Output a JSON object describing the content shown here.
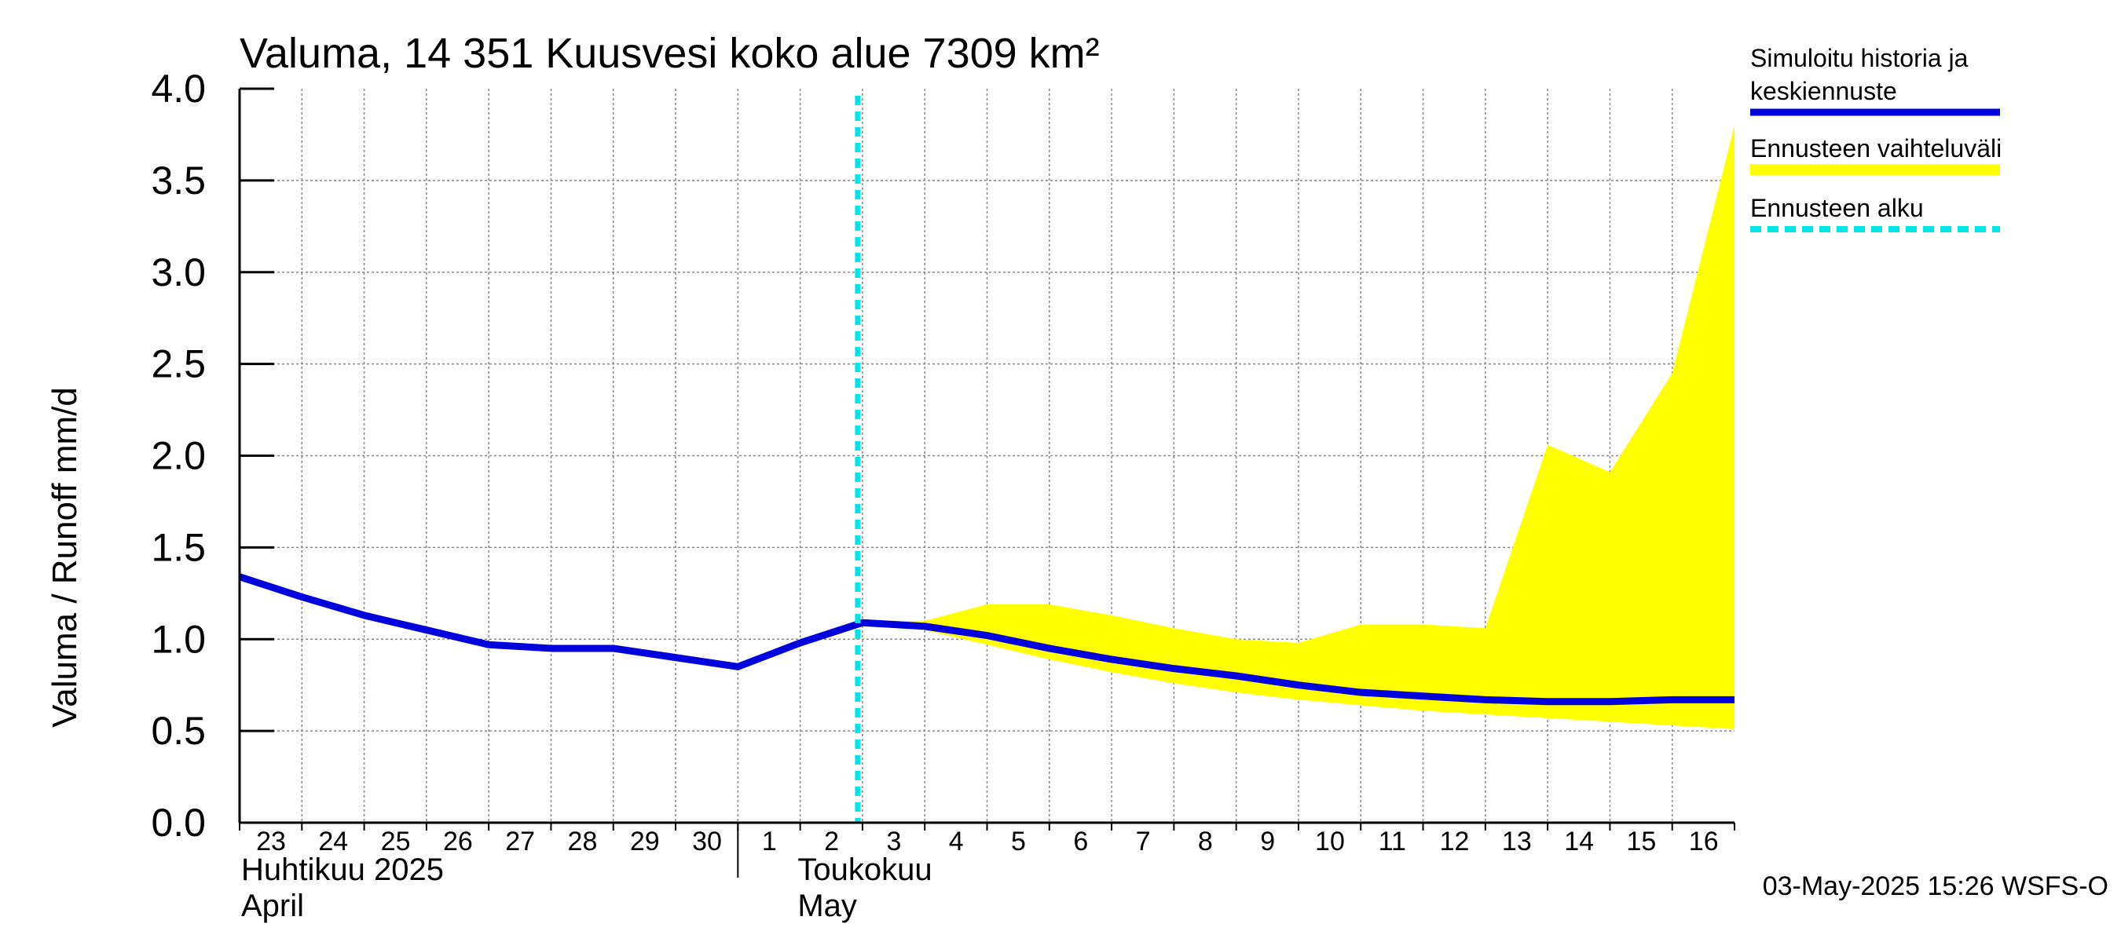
{
  "colors": {
    "line": "#0000dd",
    "band": "#ffff00",
    "forecast_start": "#00e5e5",
    "grid": "#888888",
    "axis": "#000000"
  },
  "chart_data": {
    "type": "line",
    "title": "Valuma, 14 351 Kuusvesi koko alue 7309 km²",
    "ylabel": "Valuma / Runoff    mm/d",
    "ylim": [
      0,
      4
    ],
    "yticks": [
      "0.0",
      "0.5",
      "1.0",
      "1.5",
      "2.0",
      "2.5",
      "3.0",
      "3.5",
      "4.0"
    ],
    "x_day_range": [
      0,
      24
    ],
    "x_tick_labels": [
      "23",
      "24",
      "25",
      "26",
      "27",
      "28",
      "29",
      "30",
      "1",
      "2",
      "3",
      "4",
      "5",
      "6",
      "7",
      "8",
      "9",
      "10",
      "11",
      "12",
      "13",
      "14",
      "15",
      "16"
    ],
    "month_labels": [
      {
        "fi": "Huhtikuu  2025",
        "en": "April",
        "day_index": 0
      },
      {
        "fi": "Toukokuu",
        "en": "May",
        "day_index": 8
      }
    ],
    "month_boundary_day": 8,
    "forecast_start_day": 10,
    "series": [
      {
        "name": "Simuloitu historia ja keskiennuste",
        "x": [
          0,
          1,
          2,
          3,
          4,
          5,
          6,
          7,
          8,
          9,
          10,
          11,
          12,
          13,
          14,
          15,
          16,
          17,
          18,
          19,
          20,
          21,
          22,
          23,
          24
        ],
        "values": [
          1.34,
          1.23,
          1.13,
          1.05,
          0.97,
          0.95,
          0.95,
          0.9,
          0.85,
          0.98,
          1.09,
          1.07,
          1.02,
          0.95,
          0.89,
          0.84,
          0.8,
          0.75,
          0.71,
          0.69,
          0.67,
          0.66,
          0.66,
          0.67,
          0.67
        ]
      }
    ],
    "band": {
      "name": "Ennusteen vaihteluväli",
      "x": [
        10,
        11,
        12,
        13,
        14,
        15,
        16,
        17,
        18,
        19,
        20,
        21,
        22,
        23,
        24
      ],
      "upper": [
        1.1,
        1.1,
        1.19,
        1.19,
        1.13,
        1.06,
        1.0,
        0.98,
        1.08,
        1.08,
        1.06,
        2.06,
        1.91,
        2.45,
        3.8
      ],
      "lower": [
        1.08,
        1.05,
        0.97,
        0.89,
        0.82,
        0.76,
        0.71,
        0.67,
        0.64,
        0.61,
        0.59,
        0.57,
        0.55,
        0.53,
        0.51
      ]
    },
    "legend": [
      {
        "label_line1": "Simuloitu historia ja",
        "label_line2": "keskiennuste",
        "style": "line"
      },
      {
        "label_line1": "Ennusteen vaihteluväli",
        "style": "band"
      },
      {
        "label_line1": "Ennusteen alku",
        "style": "dashed"
      }
    ],
    "timestamp": "03-May-2025 15:26 WSFS-O"
  }
}
